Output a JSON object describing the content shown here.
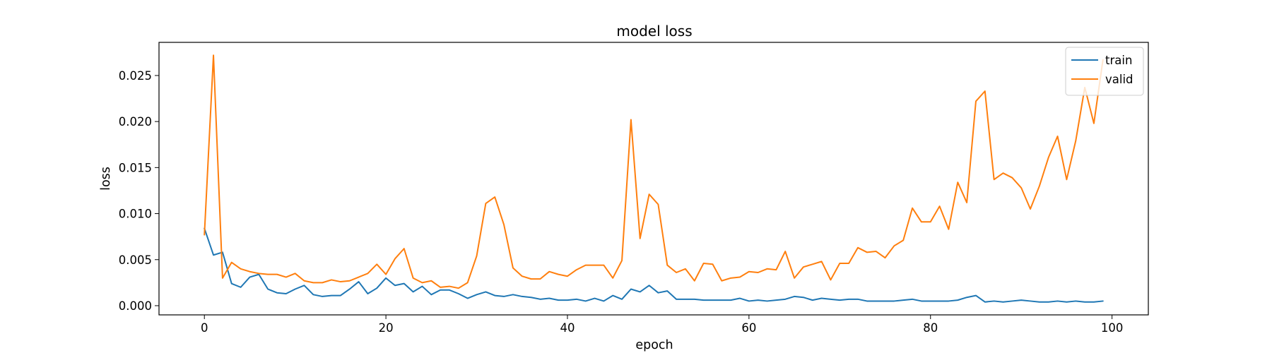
{
  "chart_data": {
    "type": "line",
    "title": "model loss",
    "xlabel": "epoch",
    "ylabel": "loss",
    "xlim": [
      -5,
      104
    ],
    "ylim": [
      -0.001,
      0.0286
    ],
    "xticks": [
      0,
      20,
      40,
      60,
      80,
      100
    ],
    "xtick_labels": [
      "0",
      "20",
      "40",
      "60",
      "80",
      "100"
    ],
    "yticks": [
      0.0,
      0.005,
      0.01,
      0.015,
      0.02,
      0.025
    ],
    "ytick_labels": [
      "0.000",
      "0.005",
      "0.010",
      "0.015",
      "0.020",
      "0.025"
    ],
    "grid": false,
    "legend_position": "top-right",
    "series": [
      {
        "name": "train",
        "color": "#1f77b4",
        "values": [
          0.0084,
          0.0055,
          0.0058,
          0.0024,
          0.002,
          0.0031,
          0.0034,
          0.0018,
          0.0014,
          0.0013,
          0.0018,
          0.0022,
          0.0012,
          0.001,
          0.0011,
          0.0011,
          0.0018,
          0.0026,
          0.0013,
          0.0019,
          0.003,
          0.0022,
          0.0024,
          0.0015,
          0.0021,
          0.0012,
          0.0017,
          0.0017,
          0.0013,
          0.0008,
          0.0012,
          0.0015,
          0.0011,
          0.001,
          0.0012,
          0.001,
          0.0009,
          0.0007,
          0.0008,
          0.0006,
          0.0006,
          0.0007,
          0.0005,
          0.0008,
          0.0005,
          0.0011,
          0.0007,
          0.0018,
          0.0015,
          0.0022,
          0.0014,
          0.0016,
          0.0007,
          0.0007,
          0.0007,
          0.0006,
          0.0006,
          0.0006,
          0.0006,
          0.0008,
          0.0005,
          0.0006,
          0.0005,
          0.0006,
          0.0007,
          0.001,
          0.0009,
          0.0006,
          0.0008,
          0.0007,
          0.0006,
          0.0007,
          0.0007,
          0.0005,
          0.0005,
          0.0005,
          0.0005,
          0.0006,
          0.0007,
          0.0005,
          0.0005,
          0.0005,
          0.0005,
          0.0006,
          0.0009,
          0.0011,
          0.0004,
          0.0005,
          0.0004,
          0.0005,
          0.0006,
          0.0005,
          0.0004,
          0.0004,
          0.0005,
          0.0004,
          0.0005,
          0.0004,
          0.0004,
          0.0005
        ]
      },
      {
        "name": "valid",
        "color": "#ff7f0e",
        "values": [
          0.0077,
          0.0272,
          0.003,
          0.0047,
          0.004,
          0.0037,
          0.0035,
          0.0034,
          0.0034,
          0.0031,
          0.0035,
          0.0027,
          0.0025,
          0.0025,
          0.0028,
          0.0026,
          0.0027,
          0.0031,
          0.0035,
          0.0045,
          0.0034,
          0.0051,
          0.0062,
          0.003,
          0.0025,
          0.0027,
          0.002,
          0.0021,
          0.0019,
          0.0025,
          0.0054,
          0.0111,
          0.0118,
          0.0088,
          0.0041,
          0.0032,
          0.0029,
          0.0029,
          0.0037,
          0.0034,
          0.0032,
          0.0039,
          0.0044,
          0.0044,
          0.0044,
          0.003,
          0.0049,
          0.0202,
          0.0073,
          0.0121,
          0.011,
          0.0044,
          0.0036,
          0.004,
          0.0027,
          0.0046,
          0.0045,
          0.0027,
          0.003,
          0.0031,
          0.0037,
          0.0036,
          0.004,
          0.0039,
          0.0059,
          0.003,
          0.0042,
          0.0045,
          0.0048,
          0.0028,
          0.0046,
          0.0046,
          0.0063,
          0.0058,
          0.0059,
          0.0052,
          0.0065,
          0.0071,
          0.0106,
          0.0091,
          0.0091,
          0.0108,
          0.0083,
          0.0134,
          0.0112,
          0.0222,
          0.0233,
          0.0137,
          0.0144,
          0.0139,
          0.0128,
          0.0105,
          0.013,
          0.0161,
          0.0184,
          0.0137,
          0.0179,
          0.0237,
          0.0198,
          0.0267
        ]
      }
    ]
  }
}
